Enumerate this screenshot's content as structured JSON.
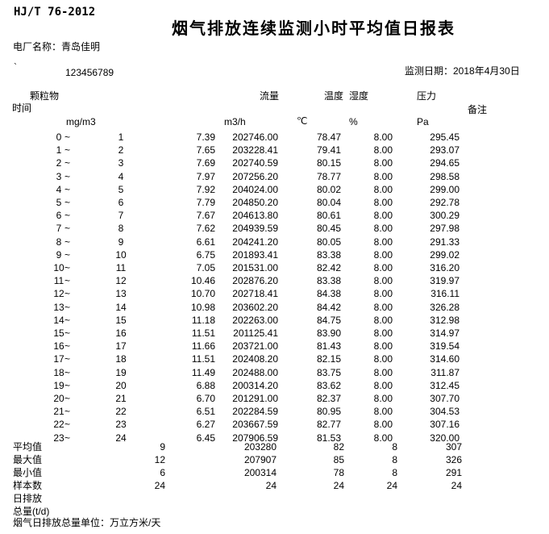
{
  "page": {
    "standard_no": "HJ/T 76-2012",
    "title": "烟气排放连续监测小时平均值日报表",
    "plant_label": "电厂名称：青岛佳明",
    "tick_mark": "`",
    "plant_code": "123456789",
    "date_label": "监测日期：2018年4月30日",
    "text_color": "#000000",
    "background_color": "#ffffff"
  },
  "table": {
    "headers": {
      "time": "时间",
      "dust": "颗粒物",
      "flow": "流量",
      "temp": "温度",
      "humidity": "湿度",
      "pressure": "压力",
      "remark": "备注"
    },
    "units": {
      "dust": "mg/m3",
      "flow": "m3/h",
      "temp": "℃",
      "humidity": "%",
      "pressure": "Pa"
    },
    "time_separator": "~",
    "rows": [
      {
        "start": "0",
        "end": "1",
        "dust": "7.39",
        "flow": "202746.00",
        "temp": "78.47",
        "humidity": "8.00",
        "pressure": "295.45"
      },
      {
        "start": "1",
        "end": "2",
        "dust": "7.65",
        "flow": "203228.41",
        "temp": "79.41",
        "humidity": "8.00",
        "pressure": "293.07"
      },
      {
        "start": "2",
        "end": "3",
        "dust": "7.69",
        "flow": "202740.59",
        "temp": "80.15",
        "humidity": "8.00",
        "pressure": "294.65"
      },
      {
        "start": "3",
        "end": "4",
        "dust": "7.97",
        "flow": "207256.20",
        "temp": "78.77",
        "humidity": "8.00",
        "pressure": "298.58"
      },
      {
        "start": "4",
        "end": "5",
        "dust": "7.92",
        "flow": "204024.00",
        "temp": "80.02",
        "humidity": "8.00",
        "pressure": "299.00"
      },
      {
        "start": "5",
        "end": "6",
        "dust": "7.79",
        "flow": "204850.20",
        "temp": "80.04",
        "humidity": "8.00",
        "pressure": "292.78"
      },
      {
        "start": "6",
        "end": "7",
        "dust": "7.67",
        "flow": "204613.80",
        "temp": "80.61",
        "humidity": "8.00",
        "pressure": "300.29"
      },
      {
        "start": "7",
        "end": "8",
        "dust": "7.62",
        "flow": "204939.59",
        "temp": "80.45",
        "humidity": "8.00",
        "pressure": "297.98"
      },
      {
        "start": "8",
        "end": "9",
        "dust": "6.61",
        "flow": "204241.20",
        "temp": "80.05",
        "humidity": "8.00",
        "pressure": "291.33"
      },
      {
        "start": "9",
        "end": "10",
        "dust": "6.75",
        "flow": "201893.41",
        "temp": "83.38",
        "humidity": "8.00",
        "pressure": "299.02"
      },
      {
        "start": "10",
        "end": "11",
        "dust": "7.05",
        "flow": "201531.00",
        "temp": "82.42",
        "humidity": "8.00",
        "pressure": "316.20"
      },
      {
        "start": "11",
        "end": "12",
        "dust": "10.46",
        "flow": "202876.20",
        "temp": "83.38",
        "humidity": "8.00",
        "pressure": "319.97"
      },
      {
        "start": "12",
        "end": "13",
        "dust": "10.70",
        "flow": "202718.41",
        "temp": "84.38",
        "humidity": "8.00",
        "pressure": "316.11"
      },
      {
        "start": "13",
        "end": "14",
        "dust": "10.98",
        "flow": "203602.20",
        "temp": "84.42",
        "humidity": "8.00",
        "pressure": "326.28"
      },
      {
        "start": "14",
        "end": "15",
        "dust": "11.18",
        "flow": "202263.00",
        "temp": "84.75",
        "humidity": "8.00",
        "pressure": "312.98"
      },
      {
        "start": "15",
        "end": "16",
        "dust": "11.51",
        "flow": "201125.41",
        "temp": "83.90",
        "humidity": "8.00",
        "pressure": "314.97"
      },
      {
        "start": "16",
        "end": "17",
        "dust": "11.66",
        "flow": "203721.00",
        "temp": "81.43",
        "humidity": "8.00",
        "pressure": "319.54"
      },
      {
        "start": "17",
        "end": "18",
        "dust": "11.51",
        "flow": "202408.20",
        "temp": "82.15",
        "humidity": "8.00",
        "pressure": "314.60"
      },
      {
        "start": "18",
        "end": "19",
        "dust": "11.49",
        "flow": "202488.00",
        "temp": "83.75",
        "humidity": "8.00",
        "pressure": "311.87"
      },
      {
        "start": "19",
        "end": "20",
        "dust": "6.88",
        "flow": "200314.20",
        "temp": "83.62",
        "humidity": "8.00",
        "pressure": "312.45"
      },
      {
        "start": "20",
        "end": "21",
        "dust": "6.70",
        "flow": "201291.00",
        "temp": "82.37",
        "humidity": "8.00",
        "pressure": "307.70"
      },
      {
        "start": "21",
        "end": "22",
        "dust": "6.51",
        "flow": "202284.59",
        "temp": "80.95",
        "humidity": "8.00",
        "pressure": "304.53"
      },
      {
        "start": "22",
        "end": "23",
        "dust": "6.27",
        "flow": "203667.59",
        "temp": "82.77",
        "humidity": "8.00",
        "pressure": "307.16"
      },
      {
        "start": "23",
        "end": "24",
        "dust": "6.45",
        "flow": "207906.59",
        "temp": "81.53",
        "humidity": "8.00",
        "pressure": "320.00"
      }
    ],
    "summary": [
      {
        "label": "平均值",
        "dust": "9",
        "flow": "203280",
        "temp": "82",
        "humidity": "8",
        "pressure": "307"
      },
      {
        "label": "最大值",
        "dust": "12",
        "flow": "207907",
        "temp": "85",
        "humidity": "8",
        "pressure": "326"
      },
      {
        "label": "最小值",
        "dust": "6",
        "flow": "200314",
        "temp": "78",
        "humidity": "8",
        "pressure": "291"
      },
      {
        "label": "样本数",
        "dust": "24",
        "flow": "24",
        "temp": "24",
        "humidity": "24",
        "pressure": "24"
      },
      {
        "label": "日排放",
        "dust": "",
        "flow": "",
        "temp": "",
        "humidity": "",
        "pressure": ""
      },
      {
        "label": "总量(t/d)",
        "dust": "",
        "flow": "",
        "temp": "",
        "humidity": "",
        "pressure": ""
      }
    ],
    "footer_note": "烟气日排放总量单位：万立方米/天"
  }
}
